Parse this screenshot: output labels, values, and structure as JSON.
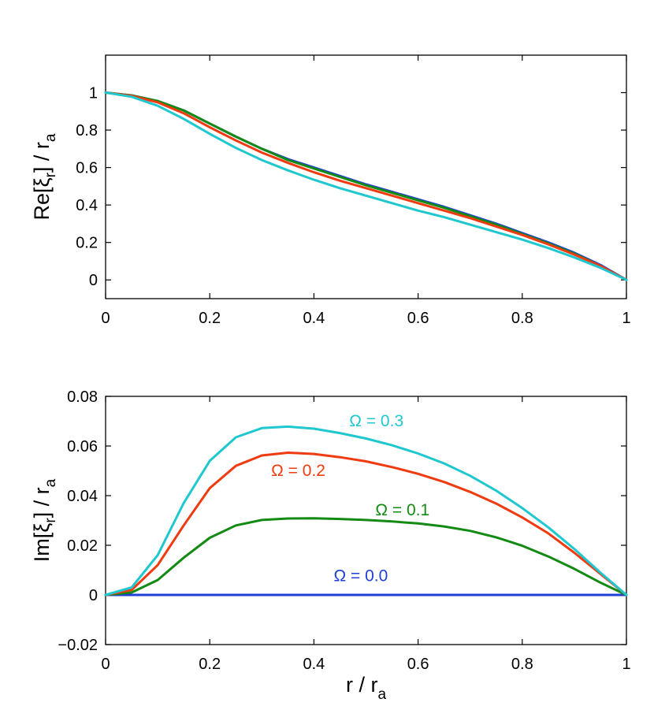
{
  "chart_data": [
    {
      "type": "line",
      "title": "",
      "xlabel": "",
      "ylabel": {
        "main": "Re[ξ",
        "sub": "r",
        "rest": "] / r",
        "sub2": "a"
      },
      "xlim": [
        0,
        1
      ],
      "ylim": [
        -0.1,
        1.2
      ],
      "xticks": [
        "0",
        "0.2",
        "0.4",
        "0.6",
        "0.8",
        "1"
      ],
      "xtick_values": [
        0,
        0.2,
        0.4,
        0.6,
        0.8,
        1
      ],
      "yticks": [
        "0",
        "0.2",
        "0.4",
        "0.6",
        "0.8",
        "1"
      ],
      "ytick_values": [
        0,
        0.2,
        0.4,
        0.6,
        0.8,
        1
      ],
      "x": [
        0,
        0.05,
        0.1,
        0.15,
        0.2,
        0.25,
        0.3,
        0.35,
        0.4,
        0.45,
        0.5,
        0.55,
        0.6,
        0.65,
        0.7,
        0.75,
        0.8,
        0.85,
        0.9,
        0.95,
        1
      ],
      "series": [
        {
          "name": "Ω = 0.0",
          "color": "#1f3fd6",
          "values": [
            1.0,
            0.985,
            0.955,
            0.905,
            0.835,
            0.765,
            0.7,
            0.645,
            0.6,
            0.555,
            0.51,
            0.47,
            0.43,
            0.39,
            0.345,
            0.3,
            0.25,
            0.2,
            0.145,
            0.08,
            0.0
          ]
        },
        {
          "name": "Ω = 0.1",
          "color": "#138a13",
          "values": [
            1.0,
            0.985,
            0.955,
            0.905,
            0.835,
            0.765,
            0.7,
            0.64,
            0.595,
            0.55,
            0.505,
            0.465,
            0.425,
            0.385,
            0.34,
            0.295,
            0.245,
            0.195,
            0.14,
            0.075,
            0.0
          ]
        },
        {
          "name": "Ω = 0.2",
          "color": "#f03a10",
          "values": [
            1.0,
            0.983,
            0.948,
            0.89,
            0.815,
            0.745,
            0.68,
            0.625,
            0.575,
            0.53,
            0.49,
            0.45,
            0.41,
            0.37,
            0.33,
            0.285,
            0.24,
            0.19,
            0.135,
            0.075,
            0.0
          ]
        },
        {
          "name": "Ω = 0.3",
          "color": "#1fc7cf",
          "values": [
            1.0,
            0.978,
            0.93,
            0.86,
            0.78,
            0.705,
            0.64,
            0.585,
            0.535,
            0.49,
            0.45,
            0.41,
            0.37,
            0.335,
            0.295,
            0.255,
            0.215,
            0.17,
            0.12,
            0.065,
            0.0
          ]
        }
      ],
      "grid": false
    },
    {
      "type": "line",
      "title": "",
      "xlabel": {
        "main": "r / r",
        "sub": "a"
      },
      "ylabel": {
        "main": "Im[ξ",
        "sub": "r",
        "rest": "] / r",
        "sub2": "a"
      },
      "xlim": [
        0,
        1
      ],
      "ylim": [
        -0.02,
        0.08
      ],
      "xticks": [
        "0",
        "0.2",
        "0.4",
        "0.6",
        "0.8",
        "1"
      ],
      "xtick_values": [
        0,
        0.2,
        0.4,
        0.6,
        0.8,
        1
      ],
      "yticks": [
        "−0.02",
        "0",
        "0.02",
        "0.04",
        "0.06",
        "0.08"
      ],
      "ytick_values": [
        -0.02,
        0,
        0.02,
        0.04,
        0.06,
        0.08
      ],
      "x": [
        0,
        0.05,
        0.1,
        0.15,
        0.2,
        0.25,
        0.3,
        0.35,
        0.4,
        0.45,
        0.5,
        0.55,
        0.6,
        0.65,
        0.7,
        0.75,
        0.8,
        0.85,
        0.9,
        0.95,
        1
      ],
      "series": [
        {
          "name": "Ω = 0.0",
          "color": "#1f3fd6",
          "values": [
            0,
            0,
            0,
            0,
            0,
            0,
            0,
            0,
            0,
            0,
            0,
            0,
            0,
            0,
            0,
            0,
            0,
            0,
            0,
            0,
            0
          ]
        },
        {
          "name": "Ω = 0.1",
          "color": "#138a13",
          "values": [
            0,
            0.001,
            0.006,
            0.015,
            0.023,
            0.028,
            0.0302,
            0.0308,
            0.0309,
            0.0306,
            0.0302,
            0.0296,
            0.0288,
            0.0276,
            0.0258,
            0.0232,
            0.0198,
            0.0155,
            0.0105,
            0.005,
            0
          ]
        },
        {
          "name": "Ω = 0.2",
          "color": "#f03a10",
          "values": [
            0,
            0.002,
            0.012,
            0.028,
            0.043,
            0.052,
            0.0562,
            0.0573,
            0.0568,
            0.0555,
            0.0538,
            0.0515,
            0.0488,
            0.0455,
            0.0415,
            0.0368,
            0.0312,
            0.0248,
            0.017,
            0.0085,
            0
          ]
        },
        {
          "name": "Ω = 0.3",
          "color": "#1fc7cf",
          "values": [
            0,
            0.003,
            0.016,
            0.037,
            0.054,
            0.0635,
            0.0672,
            0.0678,
            0.067,
            0.0652,
            0.063,
            0.0603,
            0.057,
            0.053,
            0.048,
            0.042,
            0.035,
            0.0272,
            0.0185,
            0.009,
            0
          ]
        }
      ],
      "annotations": [
        {
          "text": "Ω = 0.3",
          "series": "Ω = 0.3",
          "color": "#1fc7cf",
          "x": 0.52,
          "y": 0.068
        },
        {
          "text": "Ω = 0.2",
          "series": "Ω = 0.2",
          "color": "#f03a10",
          "x": 0.37,
          "y": 0.048
        },
        {
          "text": "Ω = 0.1",
          "series": "Ω = 0.1",
          "color": "#138a13",
          "x": 0.57,
          "y": 0.032
        },
        {
          "text": "Ω = 0.0",
          "series": "Ω = 0.0",
          "color": "#1f3fd6",
          "x": 0.49,
          "y": 0.0055
        }
      ],
      "grid": false
    }
  ]
}
